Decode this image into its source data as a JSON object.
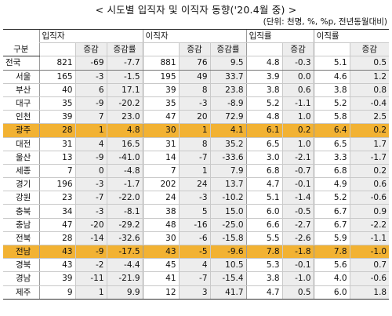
{
  "title": "< 시도별 입직자 및 이직자 동향('20.4월 중) >",
  "unit": "(단위: 천명, %, %p, 전년동월대비)",
  "headers": {
    "region": "구분",
    "groups": [
      "입직자",
      "이직자",
      "입직률",
      "이직률"
    ],
    "sub_change": "증감",
    "sub_rate": "증감률"
  },
  "rows": [
    {
      "name": "전국",
      "v": [
        "821",
        "-69",
        "-7.7",
        "881",
        "76",
        "9.5",
        "4.8",
        "-0.3",
        "5.1",
        "0.5"
      ]
    },
    {
      "name": "서울",
      "v": [
        "165",
        "-3",
        "-1.5",
        "195",
        "49",
        "33.7",
        "3.9",
        "0.0",
        "4.6",
        "1.2"
      ]
    },
    {
      "name": "부산",
      "v": [
        "40",
        "6",
        "17.1",
        "39",
        "8",
        "23.8",
        "3.8",
        "0.6",
        "3.8",
        "0.8"
      ]
    },
    {
      "name": "대구",
      "v": [
        "35",
        "-9",
        "-20.2",
        "35",
        "-3",
        "-8.9",
        "5.2",
        "-1.1",
        "5.2",
        "-0.4"
      ]
    },
    {
      "name": "인천",
      "v": [
        "39",
        "7",
        "23.0",
        "47",
        "20",
        "72.9",
        "4.8",
        "1.0",
        "5.8",
        "2.5"
      ]
    },
    {
      "name": "광주",
      "v": [
        "28",
        "1",
        "4.8",
        "30",
        "1",
        "4.1",
        "6.1",
        "0.2",
        "6.4",
        "0.2"
      ]
    },
    {
      "name": "대전",
      "v": [
        "31",
        "4",
        "16.5",
        "31",
        "8",
        "35.2",
        "6.5",
        "1.0",
        "6.5",
        "1.7"
      ]
    },
    {
      "name": "울산",
      "v": [
        "13",
        "-9",
        "-41.0",
        "14",
        "-7",
        "-33.6",
        "3.0",
        "-2.1",
        "3.3",
        "-1.7"
      ]
    },
    {
      "name": "세종",
      "v": [
        "7",
        "0",
        "-4.8",
        "7",
        "1",
        "7.9",
        "6.8",
        "-0.7",
        "6.8",
        "0.2"
      ]
    },
    {
      "name": "경기",
      "v": [
        "196",
        "-3",
        "-1.7",
        "202",
        "24",
        "13.7",
        "4.7",
        "-0.1",
        "4.9",
        "0.6"
      ]
    },
    {
      "name": "강원",
      "v": [
        "23",
        "-7",
        "-22.0",
        "24",
        "-3",
        "-10.2",
        "5.1",
        "-1.4",
        "5.2",
        "-0.6"
      ]
    },
    {
      "name": "충북",
      "v": [
        "34",
        "-3",
        "-8.1",
        "38",
        "5",
        "15.0",
        "6.0",
        "-0.5",
        "6.7",
        "0.9"
      ]
    },
    {
      "name": "충남",
      "v": [
        "47",
        "-20",
        "-29.2",
        "48",
        "-16",
        "-25.0",
        "6.6",
        "-2.7",
        "6.7",
        "-2.2"
      ]
    },
    {
      "name": "전북",
      "v": [
        "28",
        "-14",
        "-32.6",
        "30",
        "-6",
        "-15.8",
        "5.5",
        "-2.6",
        "5.9",
        "-1.1"
      ]
    },
    {
      "name": "전남",
      "v": [
        "43",
        "-9",
        "-17.5",
        "43",
        "-5",
        "-9.6",
        "7.8",
        "-1.8",
        "7.8",
        "-1.0"
      ]
    },
    {
      "name": "경북",
      "v": [
        "43",
        "-2",
        "-4.4",
        "45",
        "4",
        "10.5",
        "5.3",
        "-0.1",
        "5.6",
        "0.7"
      ]
    },
    {
      "name": "경남",
      "v": [
        "39",
        "-11",
        "-21.9",
        "41",
        "-7",
        "-15.4",
        "3.8",
        "-1.0",
        "4.0",
        "-0.6"
      ]
    },
    {
      "name": "제주",
      "v": [
        "9",
        "1",
        "9.9",
        "12",
        "3",
        "41.7",
        "4.7",
        "0.5",
        "6.0",
        "1.8"
      ]
    }
  ],
  "highlight_color": "#f2b233",
  "subcolumn_bg": "#ededed"
}
